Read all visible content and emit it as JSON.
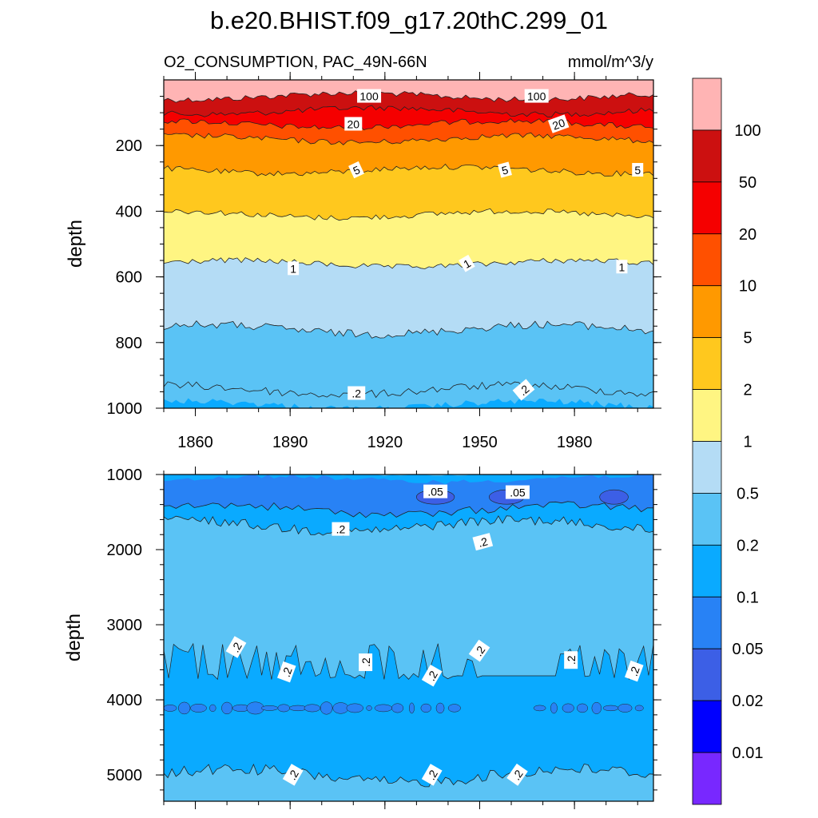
{
  "figure": {
    "title": "b.e20.BHIST.f09_g17.20thC.299_01",
    "variable_label": "O2_CONSUMPTION, PAC_49N-66N",
    "units_label": "mmol/m^3/y"
  },
  "chart_data": [
    {
      "type": "heatmap",
      "panel": "upper",
      "xlabel": "",
      "ylabel": "depth",
      "xlim": [
        1850,
        2005
      ],
      "ylim": [
        1000,
        0
      ],
      "x_ticks": [
        "1860",
        "1890",
        "1920",
        "1950",
        "1980"
      ],
      "y_ticks": [
        "200",
        "400",
        "600",
        "800",
        "1000"
      ],
      "contour_boundaries": [
        {
          "level": 100,
          "depth": 50
        },
        {
          "level": 50,
          "depth": 95
        },
        {
          "level": 20,
          "depth": 135
        },
        {
          "level": 10,
          "depth": 180
        },
        {
          "level": 5,
          "depth": 275
        },
        {
          "level": 2,
          "depth": 410
        },
        {
          "level": 1,
          "depth": 560
        },
        {
          "level": 0.5,
          "depth": 760
        },
        {
          "level": 0.2,
          "depth": 945
        }
      ],
      "contour_labels": [
        {
          "text": "100",
          "year": 1915,
          "depth": 50
        },
        {
          "text": "100",
          "year": 1968,
          "depth": 50
        },
        {
          "text": "20",
          "year": 1910,
          "depth": 135
        },
        {
          "text": "20",
          "year": 1975,
          "depth": 135
        },
        {
          "text": "5",
          "year": 1911,
          "depth": 275
        },
        {
          "text": "5",
          "year": 1958,
          "depth": 275
        },
        {
          "text": "5",
          "year": 2000,
          "depth": 275
        },
        {
          "text": "1",
          "year": 1891,
          "depth": 575
        },
        {
          "text": "1",
          "year": 1946,
          "depth": 560
        },
        {
          "text": "1",
          "year": 1995,
          "depth": 570
        },
        {
          "text": ".2",
          "year": 1911,
          "depth": 955
        },
        {
          "text": ".2",
          "year": 1964,
          "depth": 945
        }
      ]
    },
    {
      "type": "heatmap",
      "panel": "lower",
      "xlabel": "",
      "ylabel": "depth",
      "xlim": [
        1850,
        2005
      ],
      "ylim": [
        5350,
        1000
      ],
      "y_ticks": [
        "1000",
        "2000",
        "3000",
        "4000",
        "5000"
      ],
      "contour_labels": [
        {
          "text": ".05",
          "year": 1936,
          "depth": 1230
        },
        {
          "text": ".05",
          "year": 1962,
          "depth": 1240
        },
        {
          "text": ".2",
          "year": 1906,
          "depth": 1730
        },
        {
          "text": ".2",
          "year": 1951,
          "depth": 1900
        },
        {
          "text": ".2",
          "year": 1873,
          "depth": 3300
        },
        {
          "text": ".2",
          "year": 1889,
          "depth": 3630
        },
        {
          "text": ".2",
          "year": 1914,
          "depth": 3500
        },
        {
          "text": ".2",
          "year": 1935,
          "depth": 3680
        },
        {
          "text": ".2",
          "year": 1950,
          "depth": 3350
        },
        {
          "text": ".2",
          "year": 1979,
          "depth": 3470
        },
        {
          "text": ".2",
          "year": 1999,
          "depth": 3620
        },
        {
          "text": ".2",
          "year": 1891,
          "depth": 5000
        },
        {
          "text": ".2",
          "year": 1935,
          "depth": 5000
        },
        {
          "text": ".2",
          "year": 1962,
          "depth": 5000
        }
      ]
    }
  ],
  "colorbar": {
    "labels": [
      "100",
      "50",
      "20",
      "10",
      "5",
      "2",
      "1",
      "0.5",
      "0.2",
      "0.1",
      "0.05",
      "0.02",
      "0.01"
    ],
    "colors": [
      "#ffb4b4",
      "#cc1010",
      "#f50000",
      "#ff5000",
      "#ff9900",
      "#ffc81e",
      "#fff582",
      "#b4dcf5",
      "#5ac3f5",
      "#0aaaff",
      "#2882f5",
      "#3c5fe6",
      "#0000ff",
      "#7828ff"
    ]
  }
}
